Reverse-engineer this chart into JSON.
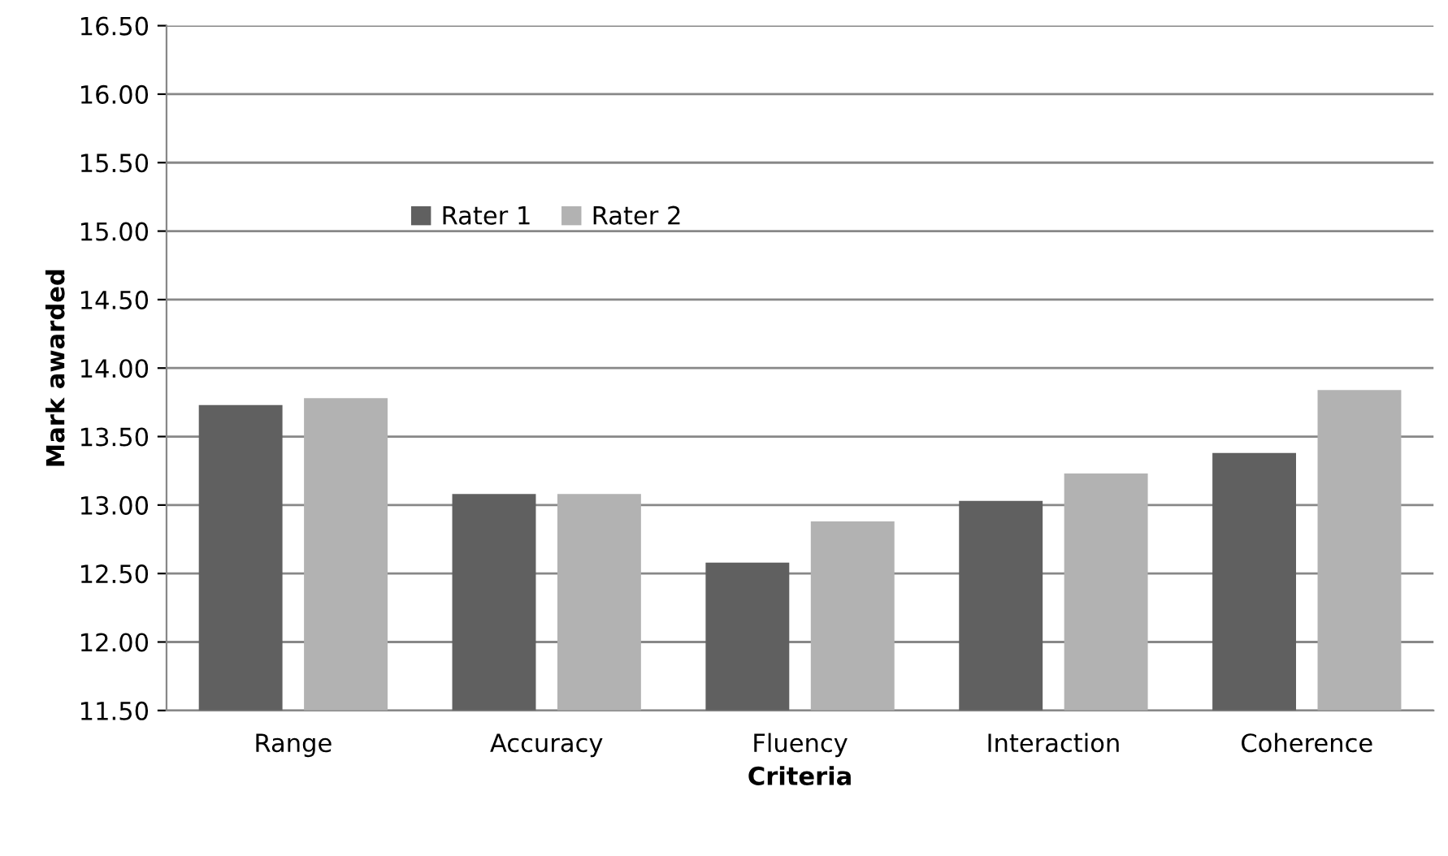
{
  "chart_data": {
    "type": "bar",
    "xlabel": "Criteria",
    "ylabel": "Mark awarded",
    "categories": [
      "Range",
      "Accuracy",
      "Fluency",
      "Interaction",
      "Coherence"
    ],
    "series": [
      {
        "name": "Rater 1",
        "color": "#606060",
        "values": [
          13.73,
          13.08,
          12.58,
          13.03,
          13.38
        ]
      },
      {
        "name": "Rater 2",
        "color": "#b2b2b2",
        "values": [
          13.78,
          13.08,
          12.88,
          13.23,
          13.84
        ]
      }
    ],
    "ylim": [
      11.5,
      16.5
    ],
    "yticks": [
      {
        "value": 11.5,
        "label": "11.50"
      },
      {
        "value": 12,
        "label": "12.00"
      },
      {
        "value": 12.5,
        "label": "12.50"
      },
      {
        "value": 13,
        "label": "13.00"
      },
      {
        "value": 13.5,
        "label": "13.50"
      },
      {
        "value": 14,
        "label": "14.00"
      },
      {
        "value": 14.5,
        "label": "14.50"
      },
      {
        "value": 15,
        "label": "15.00"
      },
      {
        "value": 15.5,
        "label": "15.50"
      },
      {
        "value": 16,
        "label": "16.00"
      },
      {
        "value": 16.5,
        "label": "16.50"
      }
    ],
    "grid": "y",
    "legend": "top"
  }
}
